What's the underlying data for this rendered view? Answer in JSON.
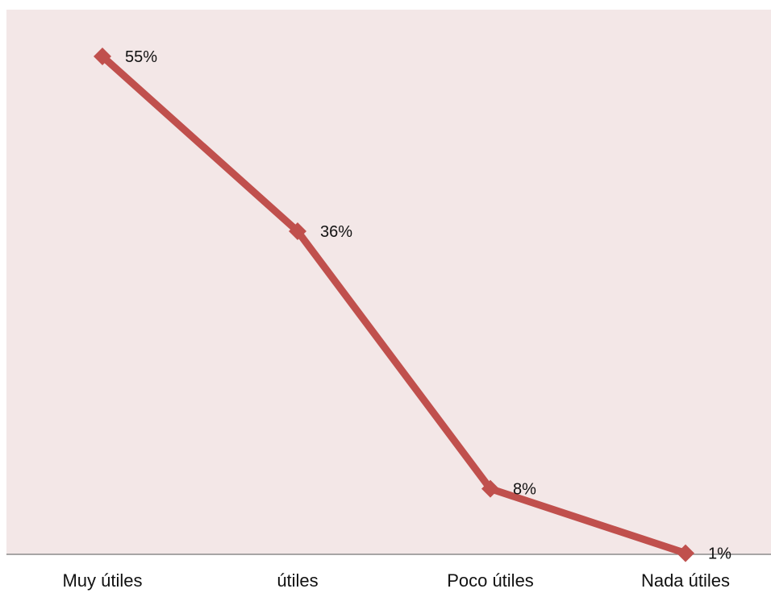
{
  "chart_data": {
    "type": "line",
    "categories": [
      "Muy útiles",
      "útiles",
      "Poco útiles",
      "Nada útiles"
    ],
    "series": [
      {
        "values": [
          55,
          36,
          8,
          1
        ],
        "data_labels": [
          "55%",
          "36%",
          "8%",
          "1%"
        ]
      }
    ],
    "ylim": [
      0,
      55
    ],
    "grid": false,
    "legend": "none",
    "colors": {
      "plot_background": "#f3e7e7",
      "line": "#c0504d",
      "axis": "#8c8c8c"
    }
  }
}
